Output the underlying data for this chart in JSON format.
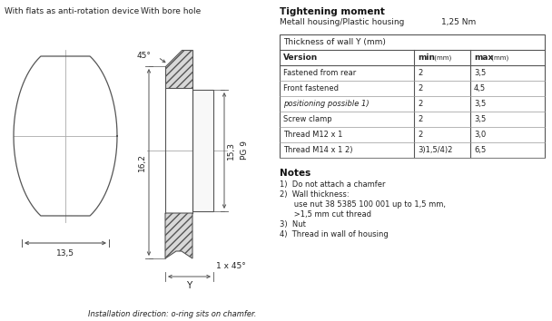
{
  "bg_color": "#ffffff",
  "title_left1": "With flats as anti-rotation device",
  "title_left2": "With bore hole",
  "tightening_title": "Tightening moment",
  "tightening_sub": "Metall housing/Plastic housing",
  "tightening_val": "1,25 Nm",
  "table_header": "Thickness of wall Y (mm)",
  "table_rows": [
    [
      "Fastened from rear",
      "2",
      "3,5"
    ],
    [
      "Front fastened",
      "2",
      "4,5"
    ],
    [
      "positioning possible 1)",
      "2",
      "3,5"
    ],
    [
      "Screw clamp",
      "2",
      "3,5"
    ],
    [
      "Thread M12 x 1",
      "2",
      "3,0"
    ],
    [
      "Thread M14 x 1 2)",
      "3)1,5/4)2",
      "6,5"
    ]
  ],
  "notes_title": "Notes",
  "note_lines": [
    "1)  Do not attach a chamfer",
    "2)  Wall thickness:",
    "      use nut 38 5385 100 001 up to 1,5 mm,",
    "      >1,5 mm cut thread",
    "3)  Nut",
    "4)  Thread in wall of housing"
  ],
  "dim_135": "13,5",
  "dim_162": "16,2",
  "dim_153": "15,3",
  "dim_pg9": "PG 9",
  "dim_45deg": "45°",
  "dim_1x45": "1 x 45°",
  "dim_Y": "Y",
  "install_note": "Installation direction: o-ring sits on chamfer.",
  "line_color": "#555555",
  "hatch_face": "#d8d8d8",
  "text_color": "#222222",
  "dim_color": "#888888"
}
